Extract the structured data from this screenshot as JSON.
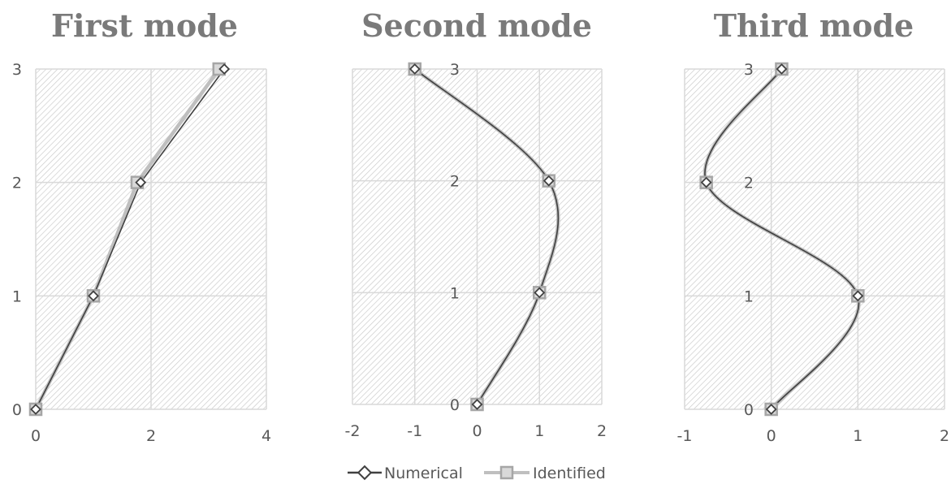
{
  "chart_data": [
    {
      "type": "line",
      "title": "First mode",
      "xlabel": "",
      "ylabel": "",
      "xlim": [
        0,
        4
      ],
      "ylim": [
        0,
        3
      ],
      "x_ticks": [
        0,
        2,
        4
      ],
      "y_ticks": [
        0,
        1,
        2,
        3
      ],
      "smooth": false,
      "series": [
        {
          "name": "Numerical",
          "x": [
            0,
            1,
            1.82,
            3.27
          ],
          "y": [
            0,
            1,
            2,
            3
          ]
        },
        {
          "name": "Identified",
          "x": [
            0,
            1,
            1.76,
            3.18
          ],
          "y": [
            0,
            1,
            2,
            3
          ]
        }
      ]
    },
    {
      "type": "line",
      "title": "Second mode",
      "xlabel": "",
      "ylabel": "",
      "xlim": [
        -2,
        2
      ],
      "ylim": [
        0,
        3
      ],
      "x_ticks": [
        -2,
        -1,
        0,
        1,
        2
      ],
      "y_ticks": [
        0,
        1,
        2,
        3
      ],
      "smooth": true,
      "series": [
        {
          "name": "Numerical",
          "x": [
            0,
            1,
            1.15,
            -1
          ],
          "y": [
            0,
            1,
            2,
            3
          ]
        },
        {
          "name": "Identified",
          "x": [
            0,
            1,
            1.15,
            -1
          ],
          "y": [
            0,
            1,
            2,
            3
          ]
        }
      ]
    },
    {
      "type": "line",
      "title": "Third mode",
      "xlabel": "",
      "ylabel": "",
      "xlim": [
        -1,
        2
      ],
      "ylim": [
        0,
        3
      ],
      "x_ticks": [
        -1,
        0,
        1,
        2
      ],
      "y_ticks": [
        0,
        1,
        2,
        3
      ],
      "smooth": true,
      "series": [
        {
          "name": "Numerical",
          "x": [
            0,
            1,
            -0.75,
            0.12
          ],
          "y": [
            0,
            1,
            2,
            3
          ]
        },
        {
          "name": "Identified",
          "x": [
            0,
            1,
            -0.75,
            0.12
          ],
          "y": [
            0,
            1,
            2,
            3
          ]
        }
      ]
    }
  ],
  "legend": {
    "placement": "bottom",
    "items": [
      {
        "label": "Numerical",
        "marker": "diamond",
        "color": "#404040"
      },
      {
        "label": "Identified",
        "marker": "square",
        "color": "#a6a6a6"
      }
    ]
  },
  "colors": {
    "numerical": "#404040",
    "identified": "#a6a6a6",
    "grid": "#d9d9d9",
    "hatch": "#d0d0d0",
    "title": "#7a7a7a",
    "tick": "#595959"
  }
}
